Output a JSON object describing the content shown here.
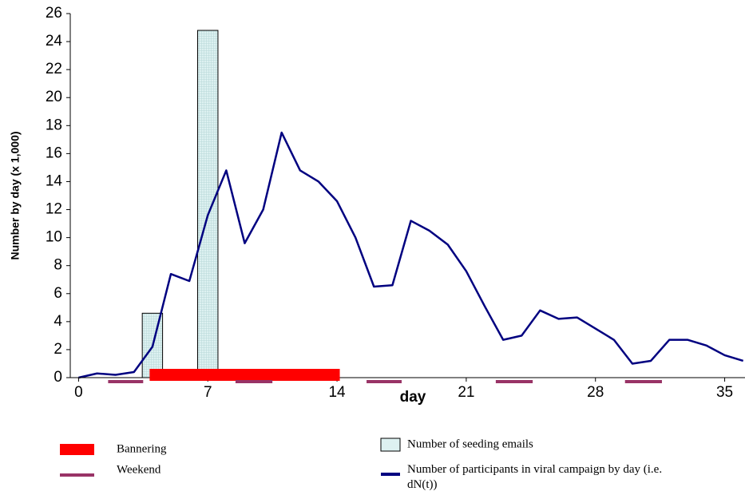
{
  "chart_data": {
    "type": "combo",
    "xlabel": "day",
    "ylabel": "Number by day (x 1,000)",
    "xlim": [
      -0.45,
      36.1
    ],
    "ylim": [
      0,
      26
    ],
    "xticks": [
      0,
      7,
      14,
      21,
      28,
      35
    ],
    "yticks": [
      0,
      2,
      4,
      6,
      8,
      10,
      12,
      14,
      16,
      18,
      20,
      22,
      24,
      26
    ],
    "series": [
      {
        "name": "Number of seeding emails",
        "type": "bar",
        "color": "#ddf1f1",
        "x": [
          4,
          7
        ],
        "values": [
          4.6,
          24.8
        ]
      },
      {
        "name": "Number of participants in viral campaign by day (i.e. dN(t))",
        "type": "line",
        "color": "#000080",
        "x": [
          0,
          1,
          2,
          3,
          4,
          5,
          6,
          7,
          8,
          9,
          10,
          11,
          12,
          13,
          14,
          15,
          16,
          17,
          18,
          19,
          20,
          21,
          22,
          23,
          24,
          25,
          26,
          27,
          28,
          29,
          30,
          31,
          32,
          33,
          34,
          35,
          36
        ],
        "values": [
          0,
          0.3,
          0.2,
          0.4,
          2.2,
          7.4,
          6.9,
          11.6,
          14.8,
          9.6,
          12,
          17.5,
          14.8,
          14,
          12.6,
          10,
          6.5,
          6.6,
          11.2,
          10.5,
          9.5,
          7.6,
          5.1,
          2.7,
          3,
          4.8,
          4.2,
          4.3,
          3.5,
          2.7,
          1,
          1.2,
          2.7,
          2.7,
          2.3,
          1.6,
          1.2
        ]
      }
    ],
    "ranges": [
      {
        "name": "Bannering",
        "color": "#ff0000",
        "spans": [
          [
            3.85,
            14.15
          ]
        ]
      },
      {
        "name": "Weekend",
        "color": "#993366",
        "spans": [
          [
            1.6,
            3.5
          ],
          [
            8.5,
            10.5
          ],
          [
            15.6,
            17.5
          ],
          [
            22.6,
            24.6
          ],
          [
            29.6,
            31.6
          ]
        ]
      }
    ]
  }
}
